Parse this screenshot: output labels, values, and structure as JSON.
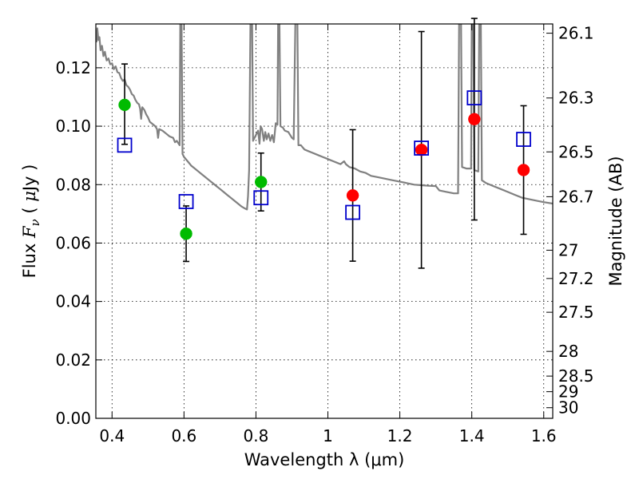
{
  "chart_data": {
    "type": "scatter",
    "xlabel": "Wavelength  λ (μm)",
    "ylabel": "Flux  Fν  ( μJy )",
    "ylabel_parts": [
      "Flux  ",
      "F",
      "ν",
      "  ( ",
      "μ",
      "Jy )"
    ],
    "y2label": "Magnitude (AB)",
    "xlim": [
      0.355,
      1.625
    ],
    "ylim": [
      0.0,
      0.135
    ],
    "grid": true,
    "xticks": [
      0.4,
      0.6,
      0.8,
      1.0,
      1.2,
      1.4,
      1.6
    ],
    "xtick_labels": [
      "0.4",
      "0.6",
      "0.8",
      "1",
      "1.2",
      "1.4",
      "1.6"
    ],
    "yticks": [
      0.0,
      0.02,
      0.04,
      0.06,
      0.08,
      0.1,
      0.12
    ],
    "ytick_labels": [
      "0.00",
      "0.02",
      "0.04",
      "0.06",
      "0.08",
      "0.10",
      "0.12"
    ],
    "mag_ticks": [
      26.1,
      26.3,
      26.5,
      26.7,
      27,
      27.2,
      27.5,
      28,
      28.5,
      29,
      30
    ],
    "mag_tick_labels": [
      "26.1",
      "26.3",
      "26.5",
      "26.7",
      "27",
      "27.2",
      "27.5",
      "28",
      "28.5",
      "29",
      "30"
    ],
    "colors": {
      "green": "#00bb00",
      "red": "#ff0000",
      "model": "#808080",
      "square": "#0000cc",
      "errorbar": "#000000"
    },
    "observed": [
      {
        "x": 0.435,
        "y": 0.1073,
        "yerr_low": 0.0135,
        "yerr_high": 0.014,
        "color": "green"
      },
      {
        "x": 0.606,
        "y": 0.0632,
        "yerr_low": 0.0095,
        "yerr_high": 0.0095,
        "color": "green"
      },
      {
        "x": 0.814,
        "y": 0.0809,
        "yerr_low": 0.0099,
        "yerr_high": 0.0099,
        "color": "green"
      },
      {
        "x": 1.069,
        "y": 0.0763,
        "yerr_low": 0.0225,
        "yerr_high": 0.0225,
        "color": "red"
      },
      {
        "x": 1.26,
        "y": 0.0919,
        "yerr_low": 0.0405,
        "yerr_high": 0.0405,
        "color": "red"
      },
      {
        "x": 1.407,
        "y": 0.1024,
        "yerr_low": 0.0345,
        "yerr_high": 0.0345,
        "color": "red"
      },
      {
        "x": 1.544,
        "y": 0.085,
        "yerr_low": 0.022,
        "yerr_high": 0.022,
        "color": "red"
      }
    ],
    "model_photometry": [
      {
        "x": 0.435,
        "y": 0.0935
      },
      {
        "x": 0.606,
        "y": 0.0742
      },
      {
        "x": 0.814,
        "y": 0.0755
      },
      {
        "x": 1.069,
        "y": 0.0705
      },
      {
        "x": 1.26,
        "y": 0.0925
      },
      {
        "x": 1.407,
        "y": 0.1097
      },
      {
        "x": 1.544,
        "y": 0.0955
      }
    ],
    "model_spectrum": [
      [
        0.355,
        0.133
      ],
      [
        0.357,
        0.129
      ],
      [
        0.359,
        0.1335
      ],
      [
        0.362,
        0.1295
      ],
      [
        0.365,
        0.1305
      ],
      [
        0.368,
        0.126
      ],
      [
        0.372,
        0.1275
      ],
      [
        0.376,
        0.124
      ],
      [
        0.38,
        0.1255
      ],
      [
        0.385,
        0.1225
      ],
      [
        0.39,
        0.1232
      ],
      [
        0.395,
        0.1212
      ],
      [
        0.4,
        0.1215
      ],
      [
        0.405,
        0.1195
      ],
      [
        0.41,
        0.1205
      ],
      [
        0.415,
        0.1185
      ],
      [
        0.42,
        0.1182
      ],
      [
        0.425,
        0.1165
      ],
      [
        0.43,
        0.1155
      ],
      [
        0.435,
        0.116
      ],
      [
        0.44,
        0.114
      ],
      [
        0.445,
        0.1135
      ],
      [
        0.45,
        0.1125
      ],
      [
        0.455,
        0.111
      ],
      [
        0.46,
        0.1105
      ],
      [
        0.465,
        0.109
      ],
      [
        0.47,
        0.108
      ],
      [
        0.475,
        0.1075
      ],
      [
        0.478,
        0.106
      ],
      [
        0.481,
        0.1025
      ],
      [
        0.484,
        0.1065
      ],
      [
        0.49,
        0.1055
      ],
      [
        0.495,
        0.104
      ],
      [
        0.5,
        0.103
      ],
      [
        0.505,
        0.1015
      ],
      [
        0.51,
        0.101
      ],
      [
        0.515,
        0.1005
      ],
      [
        0.52,
        0.1
      ],
      [
        0.525,
        0.099
      ],
      [
        0.528,
        0.096
      ],
      [
        0.531,
        0.099
      ],
      [
        0.54,
        0.0985
      ],
      [
        0.55,
        0.0975
      ],
      [
        0.56,
        0.0965
      ],
      [
        0.57,
        0.096
      ],
      [
        0.575,
        0.0945
      ],
      [
        0.58,
        0.095
      ],
      [
        0.588,
        0.0935
      ],
      [
        0.59,
        0.14
      ],
      [
        0.593,
        0.14
      ],
      [
        0.596,
        0.0905
      ],
      [
        0.6,
        0.0895
      ],
      [
        0.61,
        0.088
      ],
      [
        0.62,
        0.0865
      ],
      [
        0.63,
        0.0855
      ],
      [
        0.64,
        0.0845
      ],
      [
        0.65,
        0.0835
      ],
      [
        0.66,
        0.0825
      ],
      [
        0.67,
        0.0815
      ],
      [
        0.68,
        0.0805
      ],
      [
        0.69,
        0.0795
      ],
      [
        0.7,
        0.0785
      ],
      [
        0.71,
        0.0775
      ],
      [
        0.72,
        0.0765
      ],
      [
        0.73,
        0.0755
      ],
      [
        0.74,
        0.0745
      ],
      [
        0.75,
        0.0735
      ],
      [
        0.76,
        0.0725
      ],
      [
        0.77,
        0.0718
      ],
      [
        0.775,
        0.0715
      ],
      [
        0.778,
        0.076
      ],
      [
        0.781,
        0.085
      ],
      [
        0.785,
        0.14
      ],
      [
        0.789,
        0.14
      ],
      [
        0.792,
        0.095
      ],
      [
        0.8,
        0.097
      ],
      [
        0.806,
        0.0985
      ],
      [
        0.81,
        0.094
      ],
      [
        0.813,
        0.1
      ],
      [
        0.817,
        0.099
      ],
      [
        0.822,
        0.095
      ],
      [
        0.826,
        0.098
      ],
      [
        0.83,
        0.0955
      ],
      [
        0.835,
        0.0975
      ],
      [
        0.84,
        0.095
      ],
      [
        0.845,
        0.097
      ],
      [
        0.85,
        0.0945
      ],
      [
        0.855,
        0.101
      ],
      [
        0.86,
        0.1005
      ],
      [
        0.862,
        0.14
      ],
      [
        0.865,
        0.14
      ],
      [
        0.868,
        0.1
      ],
      [
        0.875,
        0.0995
      ],
      [
        0.88,
        0.0985
      ],
      [
        0.89,
        0.098
      ],
      [
        0.9,
        0.096
      ],
      [
        0.905,
        0.0955
      ],
      [
        0.91,
        0.14
      ],
      [
        0.915,
        0.14
      ],
      [
        0.918,
        0.0935
      ],
      [
        0.925,
        0.0935
      ],
      [
        0.935,
        0.092
      ],
      [
        0.945,
        0.0915
      ],
      [
        0.955,
        0.091
      ],
      [
        0.965,
        0.0905
      ],
      [
        0.975,
        0.09
      ],
      [
        0.985,
        0.0895
      ],
      [
        0.995,
        0.089
      ],
      [
        1.005,
        0.0885
      ],
      [
        1.015,
        0.088
      ],
      [
        1.025,
        0.0875
      ],
      [
        1.035,
        0.087
      ],
      [
        1.045,
        0.088
      ],
      [
        1.05,
        0.087
      ],
      [
        1.055,
        0.0865
      ],
      [
        1.06,
        0.086
      ],
      [
        1.075,
        0.0855
      ],
      [
        1.09,
        0.0845
      ],
      [
        1.105,
        0.084
      ],
      [
        1.12,
        0.083
      ],
      [
        1.14,
        0.0825
      ],
      [
        1.16,
        0.082
      ],
      [
        1.18,
        0.0815
      ],
      [
        1.2,
        0.081
      ],
      [
        1.22,
        0.0805
      ],
      [
        1.24,
        0.08
      ],
      [
        1.26,
        0.0798
      ],
      [
        1.28,
        0.0796
      ],
      [
        1.3,
        0.0795
      ],
      [
        1.31,
        0.078
      ],
      [
        1.33,
        0.0775
      ],
      [
        1.35,
        0.077
      ],
      [
        1.362,
        0.077
      ],
      [
        1.365,
        0.14
      ],
      [
        1.37,
        0.14
      ],
      [
        1.373,
        0.086
      ],
      [
        1.385,
        0.0855
      ],
      [
        1.398,
        0.0855
      ],
      [
        1.4,
        0.14
      ],
      [
        1.404,
        0.14
      ],
      [
        1.407,
        0.085
      ],
      [
        1.418,
        0.0845
      ],
      [
        1.421,
        0.14
      ],
      [
        1.425,
        0.14
      ],
      [
        1.428,
        0.0815
      ],
      [
        1.44,
        0.0805
      ],
      [
        1.46,
        0.0795
      ],
      [
        1.48,
        0.0785
      ],
      [
        1.5,
        0.0775
      ],
      [
        1.52,
        0.0765
      ],
      [
        1.54,
        0.0755
      ],
      [
        1.56,
        0.075
      ],
      [
        1.58,
        0.0745
      ],
      [
        1.6,
        0.074
      ],
      [
        1.625,
        0.0735
      ]
    ]
  }
}
